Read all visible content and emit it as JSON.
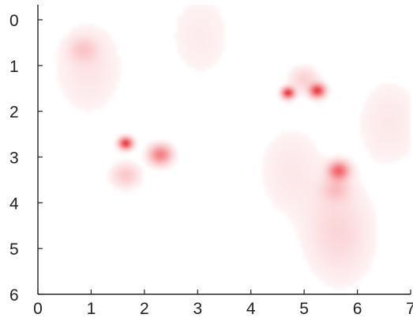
{
  "chart_data": {
    "type": "heatmap",
    "title": "",
    "xlabel": "",
    "ylabel": "",
    "xlim": [
      0,
      7
    ],
    "ylim": [
      6,
      0
    ],
    "y_axis_inverted": true,
    "x_ticks": [
      "0",
      "1",
      "2",
      "3",
      "4",
      "5",
      "6",
      "7"
    ],
    "y_ticks": [
      "0",
      "1",
      "2",
      "3",
      "4",
      "5",
      "6"
    ],
    "colormap": {
      "low": "#ffffff",
      "high": "#e8000b"
    },
    "grid": false,
    "legend": "none",
    "hotspots": [
      {
        "x": 0.85,
        "y": 0.65,
        "intensity": 0.12
      },
      {
        "x": 0.95,
        "y": 1.05,
        "intensity": 0.06
      },
      {
        "x": 1.65,
        "y": 2.7,
        "intensity": 0.95
      },
      {
        "x": 2.3,
        "y": 2.95,
        "intensity": 0.45
      },
      {
        "x": 1.65,
        "y": 3.4,
        "intensity": 0.15
      },
      {
        "x": 4.7,
        "y": 1.6,
        "intensity": 1.0
      },
      {
        "x": 5.25,
        "y": 1.55,
        "intensity": 0.85
      },
      {
        "x": 5.0,
        "y": 1.3,
        "intensity": 0.12
      },
      {
        "x": 5.65,
        "y": 3.3,
        "intensity": 0.55
      },
      {
        "x": 5.6,
        "y": 3.7,
        "intensity": 0.15
      },
      {
        "x": 5.6,
        "y": 4.4,
        "intensity": 0.06
      },
      {
        "x": 5.7,
        "y": 4.9,
        "intensity": 0.05
      },
      {
        "x": 6.6,
        "y": 2.25,
        "intensity": 0.05
      },
      {
        "x": 3.05,
        "y": 0.35,
        "intensity": 0.04
      },
      {
        "x": 4.75,
        "y": 3.3,
        "intensity": 0.05
      }
    ]
  }
}
